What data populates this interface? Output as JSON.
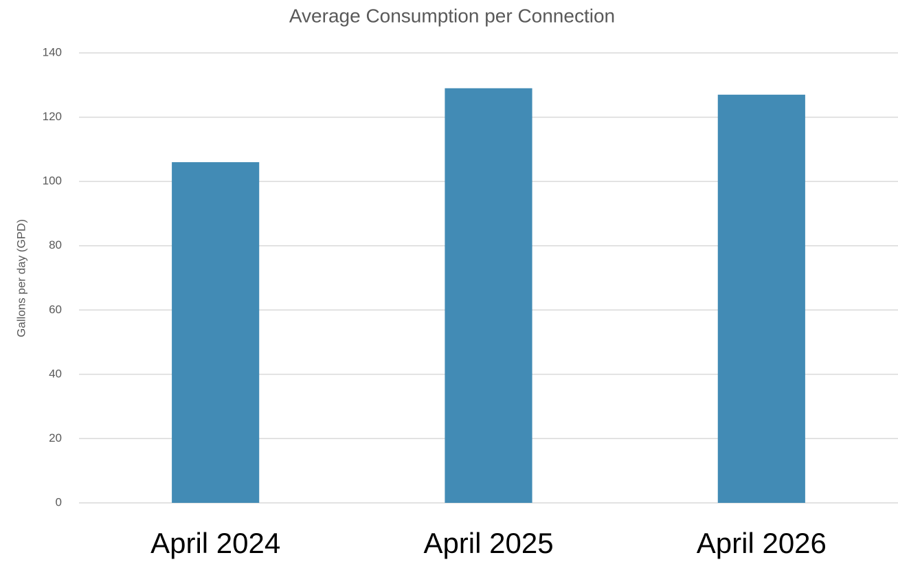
{
  "chart_data": {
    "type": "bar",
    "title": "Average Consumption per Connection",
    "y_label": "Gallons per day (GPD)",
    "categories": [
      "April 2024",
      "April 2025",
      "April 2026"
    ],
    "values": [
      106,
      129,
      127
    ],
    "color": "#428bb5",
    "ylim": [
      0,
      140
    ],
    "yticks": [
      0,
      20,
      40,
      60,
      80,
      100,
      120,
      140
    ],
    "grid": true
  }
}
